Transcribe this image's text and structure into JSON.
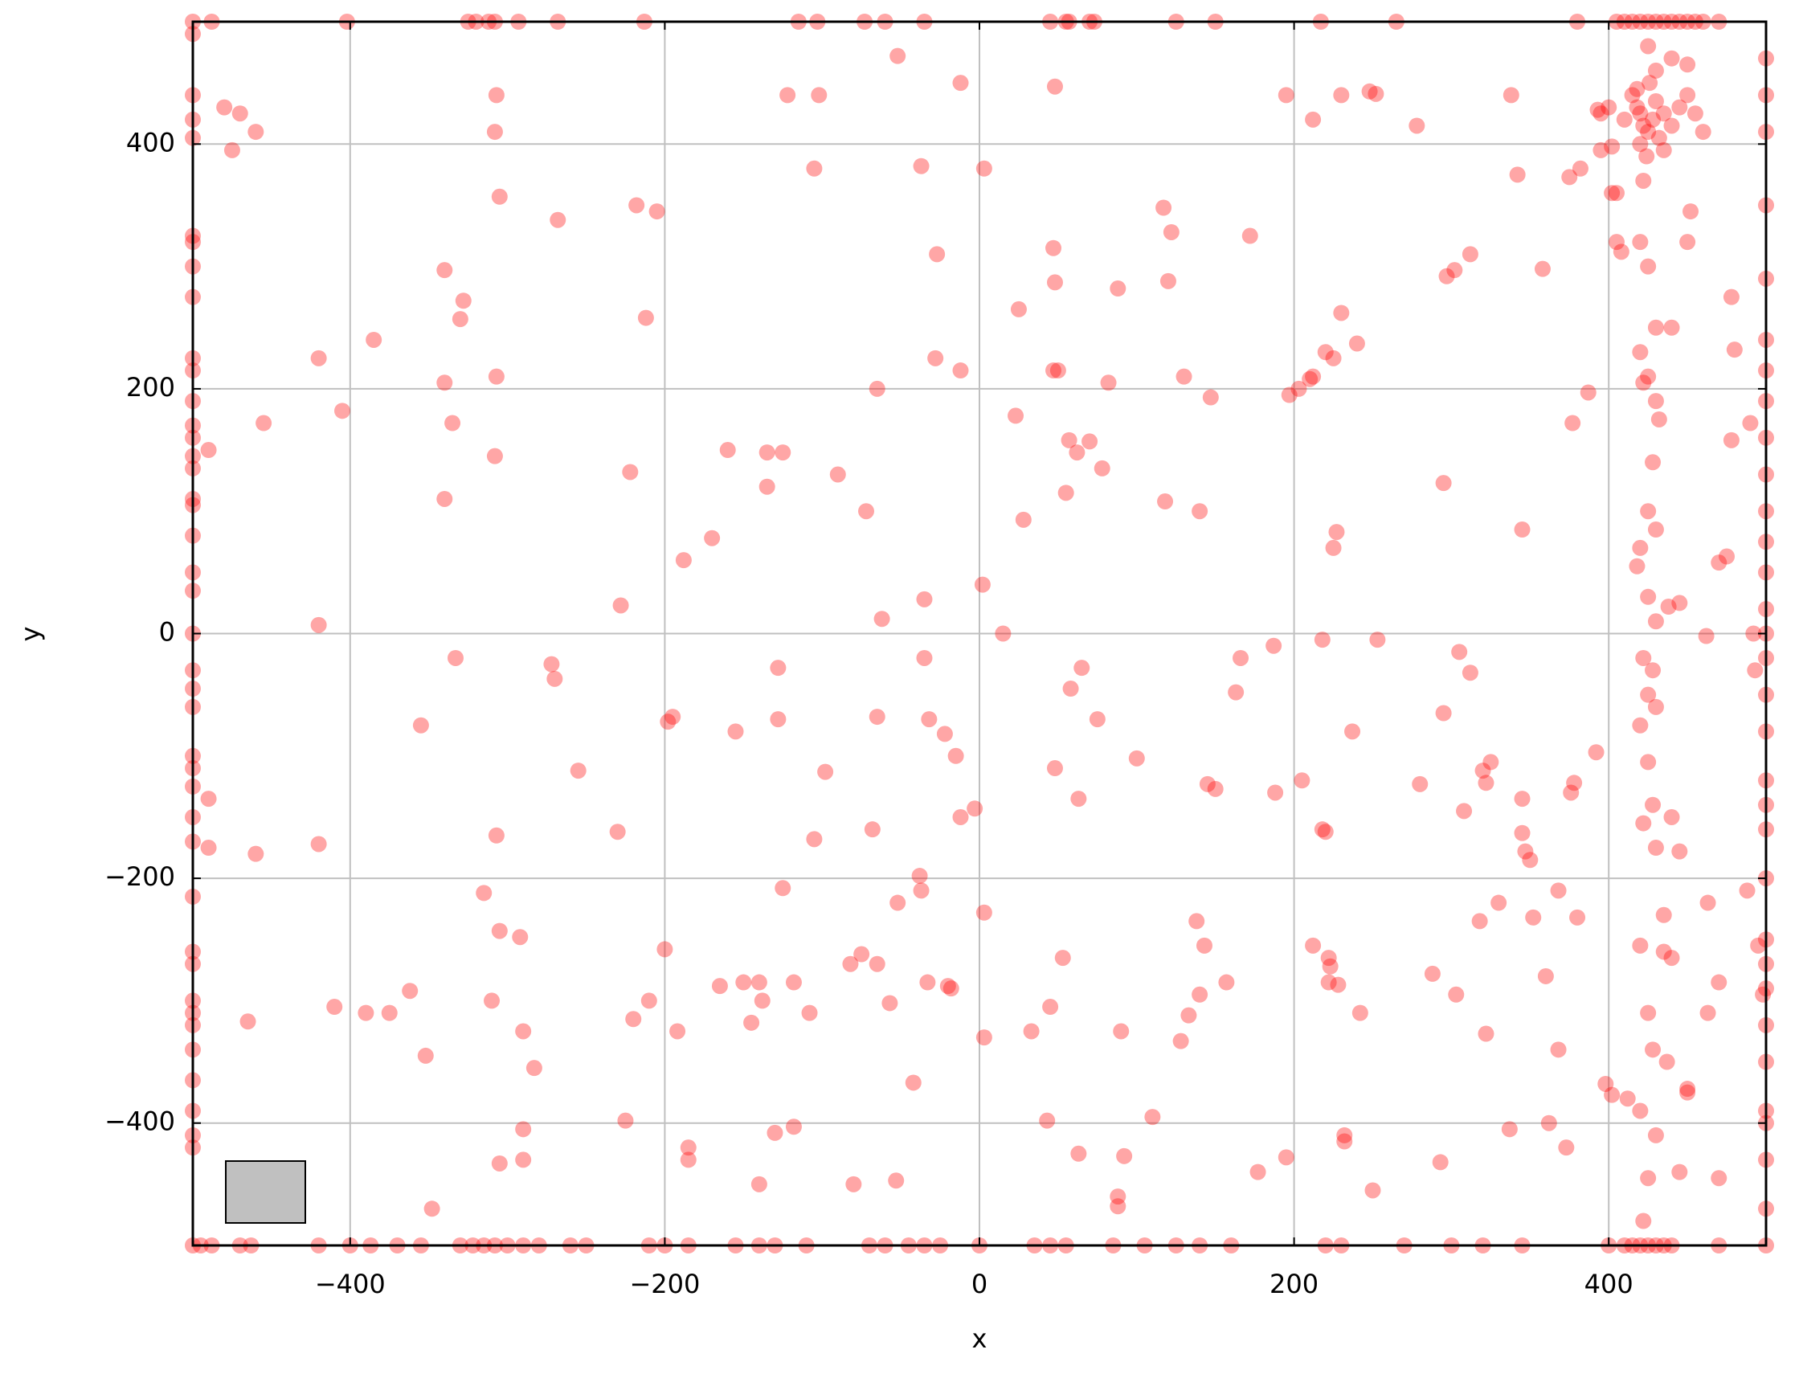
{
  "chart_data": {
    "type": "scatter",
    "xlabel": "x",
    "ylabel": "y",
    "xlim": [
      -500,
      500
    ],
    "ylim": [
      -500,
      500
    ],
    "xticks": [
      {
        "value": -400,
        "label": "−400"
      },
      {
        "value": -200,
        "label": "−200"
      },
      0,
      200,
      400
    ],
    "yticks": [
      {
        "value": -400,
        "label": "−400"
      },
      {
        "value": -200,
        "label": "−200"
      },
      0,
      200,
      400
    ],
    "grid": true,
    "series": [
      {
        "color": "rgba(255,0,0,0.35)",
        "x": [
          -500,
          -488,
          -402,
          -325,
          -320,
          -312,
          -308,
          -293,
          -268,
          -213,
          -115,
          -103,
          -73,
          -60,
          -35,
          45,
          55,
          57,
          70,
          73,
          125,
          150,
          217,
          265,
          380,
          405,
          410,
          415,
          420,
          425,
          430,
          435,
          440,
          445,
          450,
          455,
          460,
          470,
          -500,
          -495,
          -488,
          -470,
          -463,
          -420,
          -400,
          -387,
          -370,
          -355,
          -330,
          -322,
          -315,
          -308,
          -300,
          -290,
          -280,
          -260,
          -250,
          -210,
          -200,
          -185,
          -155,
          -140,
          -130,
          -110,
          -70,
          -60,
          -45,
          -35,
          -25,
          0,
          35,
          45,
          55,
          85,
          105,
          125,
          140,
          160,
          220,
          230,
          270,
          300,
          320,
          345,
          400,
          410,
          415,
          420,
          425,
          430,
          435,
          440,
          470,
          500,
          -500,
          -500,
          -500,
          -500,
          -500,
          -500,
          -500,
          -500,
          -500,
          -500,
          -500,
          -500,
          -500,
          -500,
          -500,
          -500,
          -500,
          -500,
          -500,
          -500,
          -500,
          -500,
          -500,
          -500,
          -500,
          -500,
          -500,
          -500,
          -500,
          -500,
          -500,
          -500,
          -500,
          -500,
          -500,
          -500,
          -500,
          -500,
          -500,
          -500,
          500,
          500,
          500,
          500,
          500,
          500,
          500,
          500,
          500,
          500,
          500,
          500,
          500,
          500,
          500,
          500,
          500,
          500,
          500,
          500,
          500,
          500,
          500,
          500,
          500,
          500,
          500,
          500,
          500,
          500,
          500,
          415,
          418,
          420,
          422,
          425,
          428,
          430,
          432,
          420,
          418,
          426,
          424,
          435,
          440,
          445,
          450,
          455,
          460,
          430,
          425,
          440,
          450,
          435,
          410,
          400,
          395,
          405,
          422,
          420,
          425,
          430,
          420,
          425,
          422,
          430,
          432,
          428,
          425,
          430,
          420,
          418,
          425,
          430,
          422,
          428,
          425,
          430,
          420,
          425,
          428,
          422,
          430,
          420,
          425,
          428,
          420,
          430,
          425,
          422,
          435,
          440,
          437,
          435,
          -480,
          -470,
          -460,
          -475,
          -455,
          -490,
          -490,
          -490,
          -460,
          -465,
          -420,
          -420,
          -420,
          -405,
          -410,
          -390,
          -385,
          -375,
          -362,
          -355,
          -352,
          -348,
          -340,
          -340,
          -340,
          -335,
          -333,
          -328,
          -330,
          -315,
          -310,
          -307,
          -308,
          -305,
          -307,
          -308,
          -307,
          -305,
          -305,
          -292,
          -290,
          -290,
          -290,
          -283,
          -272,
          -270,
          -268,
          -255,
          -230,
          -228,
          -225,
          -222,
          -220,
          -218,
          -212,
          -210,
          -205,
          -200,
          -198,
          -195,
          -192,
          -188,
          -185,
          -185,
          -170,
          -165,
          -160,
          -155,
          -150,
          -145,
          -140,
          -140,
          -138,
          -135,
          -135,
          -130,
          -128,
          -128,
          -125,
          -125,
          -122,
          -118,
          -118,
          -108,
          -105,
          -105,
          -102,
          -98,
          -90,
          -82,
          -80,
          -75,
          -72,
          -68,
          -65,
          -65,
          -62,
          -65,
          -57,
          -52,
          -53,
          -52,
          -42,
          -38,
          -37,
          -37,
          -35,
          -35,
          -33,
          -32,
          -28,
          -27,
          -22,
          -20,
          -18,
          -15,
          -12,
          -12,
          -12,
          -3,
          2,
          3,
          3,
          3,
          15,
          23,
          25,
          28,
          33,
          43,
          45,
          47,
          48,
          48,
          47,
          50,
          48,
          53,
          55,
          57,
          58,
          62,
          63,
          63,
          65,
          70,
          75,
          78,
          82,
          88,
          88,
          88,
          90,
          92,
          100,
          110,
          117,
          118,
          120,
          122,
          128,
          130,
          133,
          138,
          140,
          140,
          143,
          145,
          147,
          150,
          157,
          163,
          166,
          172,
          177,
          187,
          188,
          195,
          195,
          197,
          203,
          205,
          210,
          212,
          212,
          212,
          218,
          218,
          220,
          220,
          222,
          222,
          223,
          225,
          225,
          227,
          228,
          230,
          230,
          232,
          232,
          237,
          240,
          242,
          248,
          250,
          252,
          253,
          278,
          280,
          288,
          293,
          295,
          295,
          297,
          302,
          303,
          305,
          308,
          312,
          312,
          318,
          320,
          322,
          322,
          325,
          330,
          337,
          338,
          342,
          345,
          345,
          345,
          347,
          350,
          352,
          358,
          360,
          362,
          368,
          368,
          373,
          375,
          376,
          377,
          378,
          380,
          382,
          387,
          392,
          393,
          395,
          398,
          402,
          402,
          405,
          408,
          402,
          412,
          440,
          450,
          452,
          445,
          438,
          445,
          450,
          462,
          463,
          463,
          470,
          470,
          475,
          478,
          478,
          480,
          488,
          490,
          492,
          493,
          495,
          498,
          470,
          440,
          445,
          450
        ],
        "values": [
          500,
          500,
          500,
          500,
          500,
          500,
          500,
          500,
          500,
          500,
          500,
          500,
          500,
          500,
          500,
          500,
          500,
          500,
          500,
          500,
          500,
          500,
          500,
          500,
          500,
          500,
          500,
          500,
          500,
          500,
          500,
          500,
          500,
          500,
          500,
          500,
          500,
          500,
          -500,
          -500,
          -500,
          -500,
          -500,
          -500,
          -500,
          -500,
          -500,
          -500,
          -500,
          -500,
          -500,
          -500,
          -500,
          -500,
          -500,
          -500,
          -500,
          -500,
          -500,
          -500,
          -500,
          -500,
          -500,
          -500,
          -500,
          -500,
          -500,
          -500,
          -500,
          -500,
          -500,
          -500,
          -500,
          -500,
          -500,
          -500,
          -500,
          -500,
          -500,
          -500,
          -500,
          -500,
          -500,
          -500,
          -500,
          -500,
          -500,
          -500,
          -500,
          -500,
          -500,
          -500,
          -500,
          -500,
          490,
          440,
          420,
          405,
          325,
          320,
          300,
          275,
          225,
          215,
          190,
          170,
          160,
          145,
          135,
          110,
          105,
          80,
          50,
          35,
          0,
          -30,
          -45,
          -60,
          -100,
          -110,
          -125,
          -150,
          -170,
          -215,
          -260,
          -270,
          -300,
          -310,
          -320,
          -340,
          -365,
          -390,
          -410,
          -420,
          470,
          440,
          410,
          350,
          290,
          240,
          215,
          190,
          160,
          130,
          100,
          75,
          50,
          20,
          0,
          -20,
          -50,
          -80,
          -120,
          -140,
          -160,
          -200,
          -250,
          -270,
          -290,
          -320,
          -350,
          -390,
          -400,
          -430,
          -470,
          440,
          430,
          425,
          415,
          410,
          420,
          435,
          405,
          400,
          445,
          450,
          390,
          425,
          415,
          430,
          440,
          425,
          410,
          460,
          480,
          470,
          465,
          395,
          420,
          430,
          395,
          360,
          370,
          320,
          300,
          250,
          230,
          210,
          205,
          190,
          175,
          140,
          100,
          85,
          70,
          55,
          30,
          10,
          -20,
          -30,
          -50,
          -60,
          -75,
          -105,
          -140,
          -155,
          -175,
          -255,
          -310,
          -340,
          -390,
          -410,
          -445,
          -480,
          -230,
          -265,
          -350,
          -260,
          430,
          425,
          410,
          395,
          172,
          150,
          -135,
          -175,
          -180,
          -317,
          225,
          7,
          -172,
          182,
          -305,
          -310,
          240,
          -310,
          -292,
          -75,
          -345,
          -470,
          297,
          205,
          110,
          172,
          -20,
          272,
          257,
          -212,
          -300,
          440,
          410,
          357,
          210,
          145,
          -165,
          -243,
          -433,
          -248,
          -325,
          -405,
          -430,
          -355,
          -25,
          -37,
          338,
          -112,
          -162,
          23,
          -398,
          132,
          -315,
          350,
          258,
          -300,
          345,
          -258,
          -72,
          -68,
          -325,
          60,
          -420,
          -430,
          78,
          -288,
          150,
          -80,
          -285,
          -318,
          -285,
          -450,
          -300,
          120,
          148,
          -408,
          -28,
          -70,
          -208,
          148,
          440,
          -285,
          -403,
          -310,
          380,
          -168,
          440,
          -113,
          130,
          -270,
          -450,
          -262,
          100,
          -160,
          -68,
          200,
          12,
          -270,
          -302,
          472,
          -447,
          -220,
          -367,
          -198,
          -210,
          382,
          28,
          -20,
          -285,
          -70,
          225,
          310,
          -82,
          -288,
          -290,
          -100,
          450,
          215,
          -150,
          -143,
          40,
          380,
          -228,
          -330,
          0,
          178,
          265,
          93,
          -325,
          -398,
          -305,
          315,
          287,
          447,
          215,
          215,
          -110,
          -265,
          115,
          158,
          -45,
          148,
          -425,
          -135,
          -28,
          157,
          -70,
          135,
          205,
          282,
          -460,
          -468,
          -325,
          -427,
          -102,
          -395,
          348,
          108,
          288,
          328,
          -333,
          210,
          -312,
          -235,
          100,
          -295,
          -255,
          -123,
          193,
          -127,
          -285,
          -48,
          -20,
          325,
          -440,
          -10,
          -130,
          -428,
          440,
          195,
          200,
          -120,
          208,
          210,
          -255,
          420,
          -5,
          -160,
          230,
          -162,
          -265,
          -285,
          -272,
          70,
          225,
          83,
          -287,
          262,
          440,
          -410,
          -415,
          -80,
          237,
          -310,
          443,
          -455,
          441,
          -5,
          415,
          -123,
          -278,
          -432,
          123,
          -65,
          292,
          297,
          -295,
          -15,
          -145,
          -32,
          310,
          -235,
          -112,
          -122,
          -327,
          -105,
          -220,
          -405,
          440,
          375,
          -163,
          85,
          -135,
          -178,
          -185,
          -232,
          298,
          -280,
          -400,
          -340,
          -210,
          -420,
          373,
          -130,
          172,
          -122,
          -232,
          380,
          197,
          -97,
          428,
          425,
          -368,
          -377,
          398,
          320,
          312,
          360,
          -380,
          250,
          320,
          345,
          25,
          22,
          -178,
          -372,
          -2,
          -310,
          -220,
          -445,
          58,
          63,
          158,
          275,
          232,
          -210,
          172,
          0,
          -30,
          -255,
          -295,
          -285,
          -150,
          -440,
          -375
        ]
      }
    ]
  }
}
